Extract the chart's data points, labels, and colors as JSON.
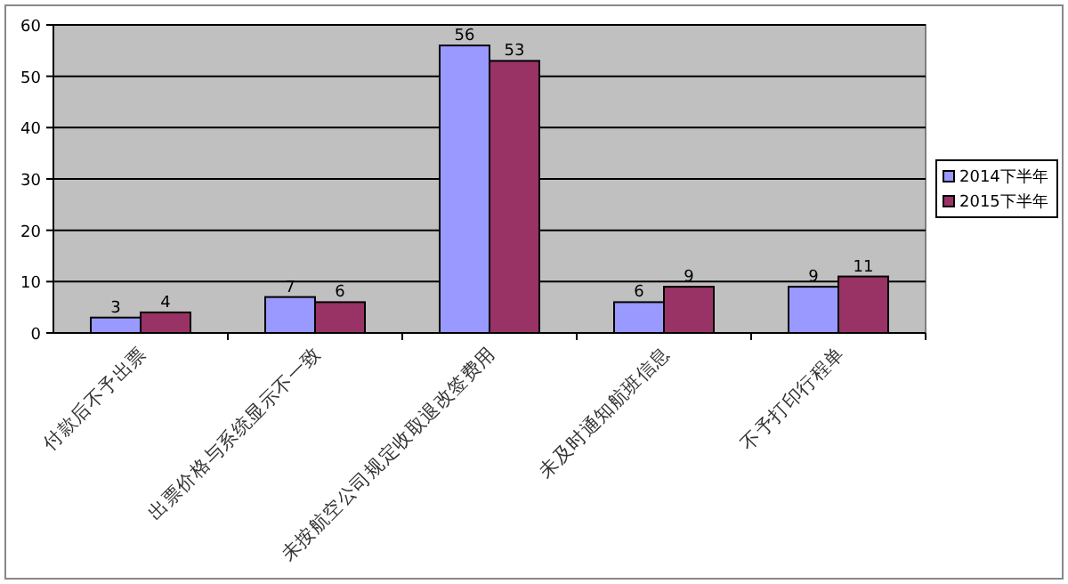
{
  "chart_data": {
    "type": "bar",
    "categories": [
      "付款后不予出票",
      "出票价格与系统显示不一致",
      "未按航空公司规定收取退改签费用",
      "未及时通知航班信息",
      "不予打印行程单"
    ],
    "series": [
      {
        "name": "2014下半年",
        "color": "#9999ff",
        "values": [
          3,
          7,
          56,
          6,
          9
        ]
      },
      {
        "name": "2015下半年",
        "color": "#993366",
        "values": [
          4,
          6,
          53,
          9,
          11
        ]
      }
    ],
    "ylim": [
      0,
      60
    ],
    "yticks": [
      0,
      10,
      20,
      30,
      40,
      50,
      60
    ],
    "grid": "y",
    "legend": "right",
    "data_labels": true
  }
}
